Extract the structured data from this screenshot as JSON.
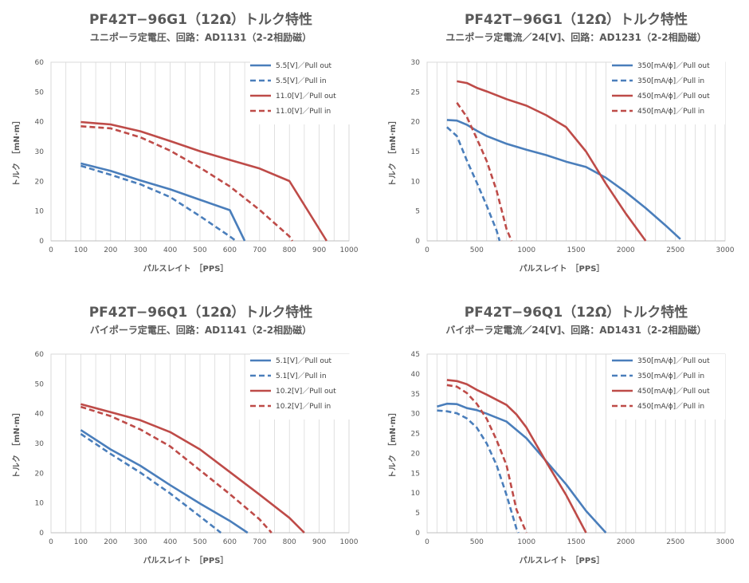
{
  "chart_data": [
    {
      "type": "line",
      "title": "PF42T−96G1（12Ω）トルク特性",
      "subtitle": "ユニポーラ定電圧、回路：AD1131（2-2相励磁）",
      "xlabel": "パルスレイト　［PPS］",
      "ylabel": "トルク　［mN·m］",
      "xlim": [
        0,
        1000
      ],
      "ylim": [
        0,
        60
      ],
      "xticks": [
        0,
        100,
        200,
        300,
        400,
        500,
        600,
        700,
        800,
        900,
        1000
      ],
      "yticks": [
        0,
        10,
        20,
        30,
        40,
        50,
        60
      ],
      "grid": "vertical",
      "legend": "top-right",
      "series": [
        {
          "name": "5.5[V]／Pull out",
          "color": "#4a7ebb",
          "dash": false,
          "x": [
            100,
            200,
            300,
            400,
            500,
            600,
            650
          ],
          "y": [
            26,
            23.5,
            20.3,
            17.3,
            13.8,
            10.3,
            0
          ]
        },
        {
          "name": "5.5[V]／Pull in",
          "color": "#4a7ebb",
          "dash": true,
          "x": [
            100,
            200,
            300,
            400,
            500,
            600,
            620
          ],
          "y": [
            25.2,
            22.2,
            19,
            14.7,
            8.3,
            1.5,
            0
          ]
        },
        {
          "name": "11.0[V]／Pull out",
          "color": "#be4b48",
          "dash": false,
          "x": [
            100,
            200,
            300,
            400,
            500,
            600,
            700,
            800,
            925
          ],
          "y": [
            39.9,
            39.1,
            36.8,
            33.5,
            30.1,
            27.2,
            24.3,
            20.1,
            0
          ]
        },
        {
          "name": "11.0[V]／Pull in",
          "color": "#be4b48",
          "dash": true,
          "x": [
            100,
            200,
            300,
            400,
            500,
            600,
            700,
            800,
            810
          ],
          "y": [
            38.5,
            37.8,
            34.8,
            30.3,
            24.6,
            18.3,
            10.4,
            1.5,
            0
          ]
        }
      ]
    },
    {
      "type": "line",
      "title": "PF42T−96G1（12Ω）トルク特性",
      "subtitle": "ユニポーラ定電流／24[V]、回路：AD1231（2-2相励磁）",
      "xlabel": "パルスレイト　［PPS］",
      "ylabel": "トルク　［mN·m］",
      "xlim": [
        0,
        3000
      ],
      "ylim": [
        0,
        30
      ],
      "xticks": [
        0,
        500,
        1000,
        1500,
        2000,
        2500,
        3000
      ],
      "yticks": [
        0,
        5,
        10,
        15,
        20,
        25,
        30
      ],
      "grid": "vertical",
      "legend": "top-right",
      "series": [
        {
          "name": "350[mA/ϕ]／Pull out",
          "color": "#4a7ebb",
          "dash": false,
          "x": [
            200,
            300,
            400,
            500,
            600,
            800,
            1000,
            1200,
            1400,
            1600,
            1800,
            2000,
            2200,
            2400,
            2550
          ],
          "y": [
            20.3,
            20.2,
            19.5,
            18.5,
            17.6,
            16.3,
            15.3,
            14.4,
            13.3,
            12.4,
            10.6,
            8.2,
            5.5,
            2.6,
            0.3
          ]
        },
        {
          "name": "350[mA/ϕ]／Pull in",
          "color": "#4a7ebb",
          "dash": true,
          "x": [
            200,
            300,
            400,
            500,
            600,
            700,
            730
          ],
          "y": [
            19.1,
            17.6,
            13.5,
            9.8,
            5.9,
            1.7,
            0
          ]
        },
        {
          "name": "450[mA/ϕ]／Pull out",
          "color": "#be4b48",
          "dash": false,
          "x": [
            300,
            400,
            500,
            600,
            800,
            1000,
            1200,
            1400,
            1600,
            1800,
            2000,
            2200
          ],
          "y": [
            26.8,
            26.5,
            25.7,
            25.1,
            23.8,
            22.7,
            21.1,
            19.1,
            15.0,
            9.6,
            4.6,
            0
          ]
        },
        {
          "name": "450[mA/ϕ]／Pull in",
          "color": "#be4b48",
          "dash": true,
          "x": [
            300,
            400,
            500,
            600,
            700,
            800,
            850
          ],
          "y": [
            23.2,
            20.8,
            17.2,
            13.4,
            8.4,
            2.0,
            0
          ]
        }
      ]
    },
    {
      "type": "line",
      "title": "PF42T−96Q1（12Ω）トルク特性",
      "subtitle": "バイポーラ定電圧、回路：AD1141（2-2相励磁）",
      "xlabel": "パルスレイト　［PPS］",
      "ylabel": "トルク　［mN·m］",
      "xlim": [
        0,
        1000
      ],
      "ylim": [
        0,
        60
      ],
      "xticks": [
        0,
        100,
        200,
        300,
        400,
        500,
        600,
        700,
        800,
        900,
        1000
      ],
      "yticks": [
        0,
        10,
        20,
        30,
        40,
        50,
        60
      ],
      "grid": "vertical",
      "legend": "top-right",
      "series": [
        {
          "name": "5.1[V]／Pull out",
          "color": "#4a7ebb",
          "dash": false,
          "x": [
            100,
            200,
            300,
            400,
            500,
            600,
            660
          ],
          "y": [
            34.5,
            28,
            22.5,
            16,
            9.8,
            4,
            0
          ]
        },
        {
          "name": "5.1[V]／Pull in",
          "color": "#4a7ebb",
          "dash": true,
          "x": [
            100,
            200,
            300,
            400,
            500,
            570
          ],
          "y": [
            33.2,
            26.5,
            20.2,
            13.2,
            5.5,
            0
          ]
        },
        {
          "name": "10.2[V]／Pull out",
          "color": "#be4b48",
          "dash": false,
          "x": [
            100,
            200,
            300,
            400,
            500,
            600,
            700,
            800,
            850
          ],
          "y": [
            43.2,
            40.5,
            37.8,
            33.8,
            28,
            20.4,
            12.8,
            5,
            0
          ]
        },
        {
          "name": "10.2[V]／Pull in",
          "color": "#be4b48",
          "dash": true,
          "x": [
            100,
            200,
            300,
            400,
            500,
            600,
            700,
            740
          ],
          "y": [
            42.3,
            39.2,
            34.7,
            29,
            21,
            13,
            4.5,
            0
          ]
        }
      ]
    },
    {
      "type": "line",
      "title": "PF42T−96Q1（12Ω）トルク特性",
      "subtitle": "バイポーラ定電流／24[V]、回路：AD1431（2-2相励磁）",
      "xlabel": "パルスレイト　［PPS］",
      "ylabel": "トルク　［mN·m］",
      "xlim": [
        0,
        3000
      ],
      "ylim": [
        0,
        45
      ],
      "xticks": [
        0,
        500,
        1000,
        1500,
        2000,
        2500,
        3000
      ],
      "yticks": [
        0,
        5,
        10,
        15,
        20,
        25,
        30,
        35,
        40,
        45
      ],
      "grid": "vertical",
      "legend": "top-right",
      "series": [
        {
          "name": "350[mA/ϕ]／Pull out",
          "color": "#4a7ebb",
          "dash": false,
          "x": [
            100,
            200,
            300,
            400,
            500,
            600,
            800,
            1000,
            1200,
            1400,
            1600,
            1800
          ],
          "y": [
            31.8,
            32.5,
            32.4,
            31.4,
            30.9,
            30.0,
            28.0,
            23.8,
            18.0,
            12.2,
            5.5,
            0
          ]
        },
        {
          "name": "350[mA/ϕ]／Pull in",
          "color": "#4a7ebb",
          "dash": true,
          "x": [
            100,
            200,
            300,
            400,
            500,
            600,
            700,
            800,
            900,
            920
          ],
          "y": [
            30.8,
            30.6,
            30.1,
            28.8,
            26.5,
            22.5,
            17.0,
            9.5,
            1.0,
            0
          ]
        },
        {
          "name": "450[mA/ϕ]／Pull out",
          "color": "#be4b48",
          "dash": false,
          "x": [
            200,
            300,
            400,
            500,
            600,
            800,
            900,
            1000,
            1200,
            1400,
            1600
          ],
          "y": [
            38.5,
            38.2,
            37.4,
            36.0,
            34.8,
            32.2,
            29.8,
            26.5,
            17.8,
            9.5,
            0
          ]
        },
        {
          "name": "450[mA/ϕ]／Pull in",
          "color": "#be4b48",
          "dash": true,
          "x": [
            200,
            300,
            400,
            500,
            600,
            700,
            800,
            900,
            1000
          ],
          "y": [
            37.2,
            36.8,
            35.2,
            32.5,
            28.7,
            23.3,
            17.0,
            5.8,
            0
          ]
        }
      ]
    }
  ]
}
